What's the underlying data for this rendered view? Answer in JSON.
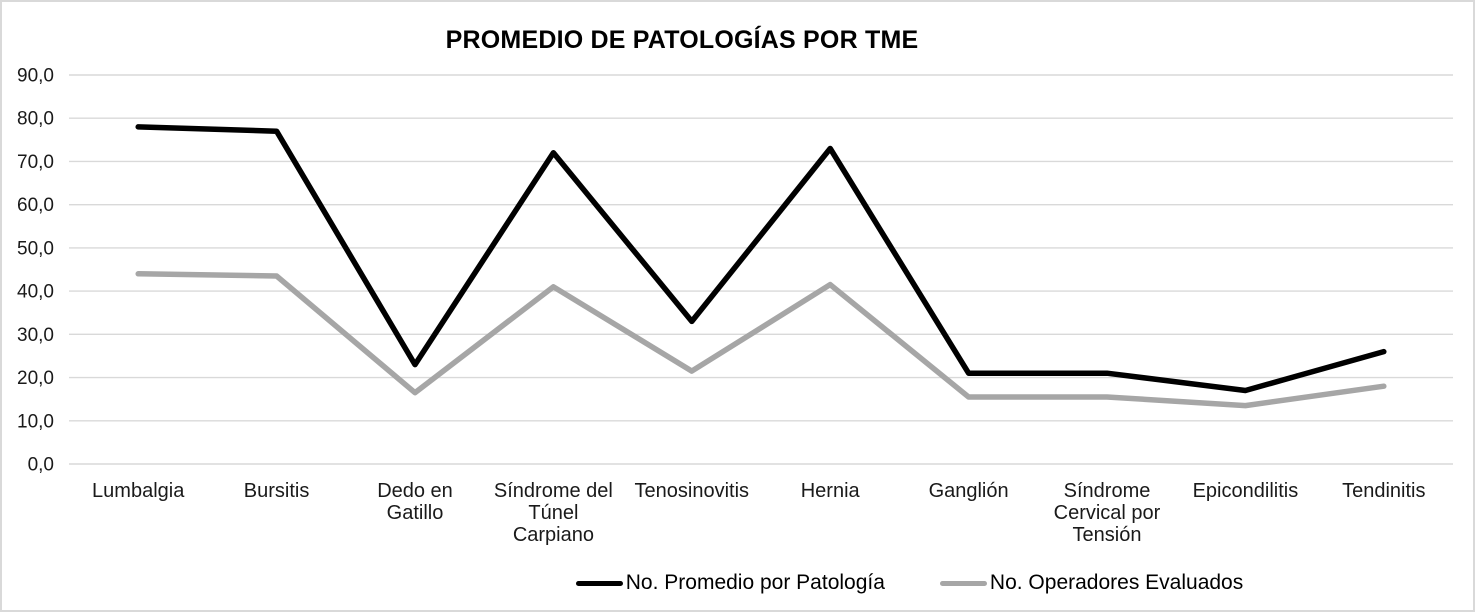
{
  "frame": {
    "background": "#ffffff",
    "border_color": "#d9d9d9"
  },
  "chart_data": {
    "type": "line",
    "title": "PROMEDIO DE PATOLOGÍAS POR TME",
    "categories": [
      "Lumbalgia",
      "Bursitis",
      "Dedo en Gatillo",
      "Síndrome del Túnel Carpiano",
      "Tenosinovitis",
      "Hernia",
      "Ganglión",
      "Síndrome Cervical por Tensión",
      "Epicondilitis",
      "Tendinitis"
    ],
    "category_label_lines": [
      [
        "Lumbalgia"
      ],
      [
        "Bursitis"
      ],
      [
        "Dedo en",
        "Gatillo"
      ],
      [
        "Síndrome del",
        "Túnel",
        "Carpiano"
      ],
      [
        "Tenosinovitis"
      ],
      [
        "Hernia"
      ],
      [
        "Ganglión"
      ],
      [
        "Síndrome",
        "Cervical por",
        "Tensión"
      ],
      [
        "Epicondilitis"
      ],
      [
        "Tendinitis"
      ]
    ],
    "series": [
      {
        "name": "No. Promedio por Patología",
        "color": "#000000",
        "values": [
          78,
          77,
          23,
          72,
          33,
          73,
          21,
          21,
          17,
          26
        ]
      },
      {
        "name": "No. Operadores Evaluados",
        "color": "#a6a6a6",
        "values": [
          44,
          43.5,
          16.5,
          41,
          21.5,
          41.5,
          15.5,
          15.5,
          13.5,
          18
        ]
      }
    ],
    "y_axis": {
      "min": 0,
      "max": 90,
      "step": 10,
      "tick_labels": [
        "0,0",
        "10,0",
        "20,0",
        "30,0",
        "40,0",
        "50,0",
        "60,0",
        "70,0",
        "80,0",
        "90,0"
      ]
    },
    "grid": true,
    "gridline_color": "#d9d9d9",
    "axis_text_color": "#1a1a1a",
    "legend_position": "bottom"
  }
}
